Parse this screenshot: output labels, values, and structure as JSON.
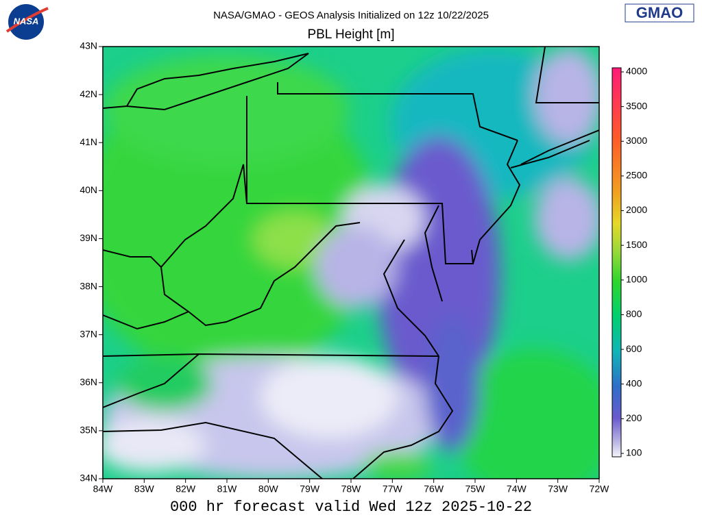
{
  "header": {
    "title": "NASA/GMAO - GEOS Analysis Initialized on 12z 10/22/2025",
    "subtitle": "PBL Height [m]",
    "logo_left": "NASA",
    "logo_right": "GMAO"
  },
  "map": {
    "lat_labels": [
      "43N",
      "42N",
      "41N",
      "40N",
      "39N",
      "38N",
      "37N",
      "36N",
      "35N",
      "34N"
    ],
    "lon_labels": [
      "84W",
      "83W",
      "82W",
      "81W",
      "80W",
      "79W",
      "78W",
      "77W",
      "76W",
      "75W",
      "74W",
      "73W",
      "72W"
    ]
  },
  "colorbar": {
    "labels": [
      "4000",
      "3500",
      "3000",
      "2500",
      "2000",
      "1500",
      "1000",
      "800",
      "600",
      "400",
      "200",
      "100"
    ]
  },
  "footer": "000 hr forecast valid Wed 12z 2025-10-22"
}
